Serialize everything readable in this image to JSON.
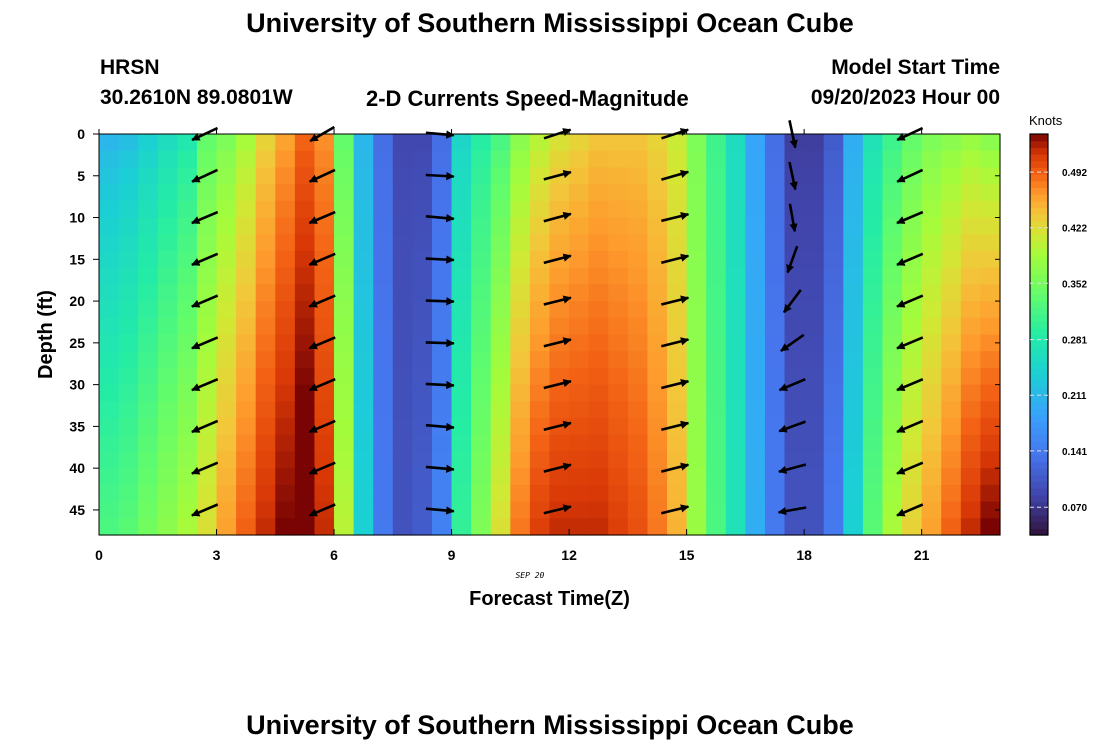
{
  "page": {
    "title": "University of Southern Mississippi Ocean Cube",
    "title_repeat": "University of Southern Mississippi Ocean Cube",
    "station": "HRSN",
    "coords": "30.2610N  89.0801W",
    "plot_title": "2-D Currents Speed-Magnitude",
    "model_start_label": "Model Start Time",
    "model_start_value": "09/20/2023 Hour 00"
  },
  "chart_data": {
    "type": "heatmap",
    "title": "2-D Currents Speed-Magnitude",
    "xlabel": "Forecast Time(Z)",
    "ylabel": "Depth (ft)",
    "date_label": "SEP 20",
    "xlim": [
      0,
      23
    ],
    "ylim": [
      0,
      48
    ],
    "x_ticks": [
      0,
      3,
      6,
      9,
      12,
      15,
      18,
      21
    ],
    "y_ticks": [
      0,
      5,
      10,
      15,
      20,
      25,
      30,
      35,
      40,
      45
    ],
    "time_columns": [
      0,
      0.5,
      1,
      1.5,
      2,
      2.5,
      3,
      3.5,
      4,
      4.5,
      5,
      5.5,
      6,
      6.5,
      7,
      7.5,
      8,
      8.5,
      9,
      9.5,
      10,
      10.5,
      11,
      11.5,
      12,
      12.5,
      13,
      13.5,
      14,
      14.5,
      15,
      15.5,
      16,
      16.5,
      17,
      17.5,
      18,
      18.5,
      19,
      19.5,
      20,
      20.5,
      21,
      21.5,
      22,
      22.5
    ],
    "surface_speed_knots": [
      0.21,
      0.22,
      0.24,
      0.26,
      0.28,
      0.34,
      0.36,
      0.39,
      0.43,
      0.46,
      0.49,
      0.47,
      0.34,
      0.21,
      0.13,
      0.09,
      0.09,
      0.13,
      0.25,
      0.29,
      0.32,
      0.37,
      0.4,
      0.42,
      0.43,
      0.44,
      0.44,
      0.44,
      0.43,
      0.41,
      0.36,
      0.31,
      0.26,
      0.19,
      0.13,
      0.08,
      0.08,
      0.11,
      0.2,
      0.27,
      0.31,
      0.34,
      0.36,
      0.37,
      0.38,
      0.37
    ],
    "bottom_speed_knots": [
      0.32,
      0.33,
      0.35,
      0.37,
      0.39,
      0.42,
      0.46,
      0.49,
      0.52,
      0.54,
      0.56,
      0.52,
      0.4,
      0.24,
      0.14,
      0.1,
      0.11,
      0.15,
      0.3,
      0.36,
      0.42,
      0.48,
      0.51,
      0.52,
      0.52,
      0.52,
      0.51,
      0.5,
      0.48,
      0.45,
      0.38,
      0.32,
      0.27,
      0.2,
      0.14,
      0.1,
      0.1,
      0.14,
      0.24,
      0.33,
      0.39,
      0.43,
      0.46,
      0.49,
      0.52,
      0.54
    ],
    "vectors": {
      "times": [
        2.7,
        5.7,
        8.7,
        11.7,
        14.7,
        17.7,
        20.7
      ],
      "depths": [
        0,
        5,
        10,
        15,
        20,
        25,
        30,
        35,
        40,
        45
      ],
      "direction_note": "angles in degrees: 0 = east, 90 = north (up)",
      "angles_deg": [
        [
          205,
          205,
          203,
          203,
          203,
          203,
          203,
          203,
          203,
          203
        ],
        [
          210,
          205,
          203,
          203,
          203,
          203,
          203,
          203,
          203,
          203
        ],
        [
          355,
          357,
          355,
          357,
          358,
          358,
          357,
          355,
          355,
          355
        ],
        [
          18,
          15,
          15,
          15,
          14,
          14,
          14,
          14,
          14,
          14
        ],
        [
          18,
          16,
          14,
          14,
          14,
          14,
          14,
          14,
          14,
          14
        ],
        [
          282,
          282,
          280,
          250,
          233,
          215,
          203,
          200,
          195,
          190
        ],
        [
          205,
          205,
          203,
          203,
          203,
          203,
          203,
          203,
          203,
          203
        ]
      ]
    },
    "colorbar": {
      "label": "Knots",
      "min": 0.035,
      "max": 0.54,
      "tick_values": [
        0.07,
        0.141,
        0.211,
        0.281,
        0.352,
        0.422,
        0.492
      ],
      "tick_labels": [
        "0.070",
        "0.141",
        "0.211",
        "0.281",
        "0.352",
        "0.422",
        "0.492"
      ]
    }
  }
}
